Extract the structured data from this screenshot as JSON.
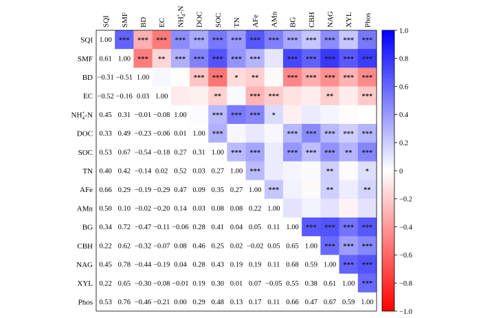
{
  "chart_data": {
    "type": "heatmap",
    "title": "",
    "xlabel": "",
    "ylabel": "",
    "variables": [
      "SQI",
      "SMF",
      "BD",
      "EC",
      "NH4+-N",
      "DOC",
      "SOC",
      "TN",
      "AFe",
      "AMn",
      "BG",
      "CBH",
      "NAG",
      "XYL",
      "Phos"
    ],
    "labels": {
      "plain": [
        "SQI",
        "SMF",
        "BD",
        "EC",
        null,
        "DOC",
        "SOC",
        "TN",
        "AFe",
        "AMn",
        "BG",
        "CBH",
        "NAG",
        "XYL",
        "Phos"
      ],
      "nh4": {
        "base": "NH",
        "sub": "4",
        "sup": "+",
        "suffix": "-N"
      }
    },
    "lower_triangle_values": [
      [
        1.0
      ],
      [
        0.61,
        1.0
      ],
      [
        -0.31,
        -0.51,
        1.0
      ],
      [
        -0.52,
        -0.16,
        0.03,
        1.0
      ],
      [
        0.45,
        0.31,
        -0.01,
        -0.08,
        1.0
      ],
      [
        0.33,
        0.49,
        -0.23,
        -0.06,
        0.01,
        1.0
      ],
      [
        0.53,
        0.67,
        -0.54,
        -0.18,
        0.27,
        0.31,
        1.0
      ],
      [
        0.4,
        0.42,
        -0.14,
        0.02,
        0.52,
        0.03,
        0.27,
        1.0
      ],
      [
        0.66,
        0.29,
        -0.19,
        -0.29,
        0.47,
        0.09,
        0.35,
        0.27,
        1.0
      ],
      [
        0.5,
        0.1,
        -0.02,
        -0.2,
        0.14,
        0.03,
        0.08,
        0.08,
        0.22,
        1.0
      ],
      [
        0.34,
        0.72,
        -0.47,
        -0.11,
        -0.06,
        0.28,
        0.41,
        0.04,
        0.05,
        0.11,
        1.0
      ],
      [
        0.22,
        0.62,
        -0.32,
        -0.07,
        0.08,
        0.46,
        0.25,
        0.02,
        -0.02,
        0.05,
        0.65,
        1.0
      ],
      [
        0.45,
        0.78,
        -0.44,
        -0.19,
        0.04,
        0.28,
        0.43,
        0.19,
        0.19,
        0.11,
        0.68,
        0.59,
        1.0
      ],
      [
        0.22,
        0.65,
        -0.3,
        -0.08,
        -0.01,
        0.19,
        0.3,
        0.01,
        0.07,
        -0.05,
        0.55,
        0.38,
        0.61,
        1.0
      ],
      [
        0.53,
        0.76,
        -0.46,
        -0.21,
        0.0,
        0.29,
        0.48,
        0.13,
        0.17,
        0.11,
        0.66,
        0.47,
        0.67,
        0.59,
        1.0
      ]
    ],
    "upper_significance": [
      [
        "",
        "***",
        "***",
        "***",
        "***",
        "***",
        "***",
        "***",
        "***",
        "***",
        "***",
        "***",
        "***",
        "***",
        "***"
      ],
      [
        "",
        "",
        "***",
        "**",
        "***",
        "***",
        "***",
        "***",
        "***",
        "",
        "***",
        "***",
        "***",
        "***",
        "***"
      ],
      [
        "",
        "",
        "",
        "",
        "",
        "***",
        "***",
        "*",
        "**",
        "",
        "***",
        "***",
        "***",
        "***",
        "***"
      ],
      [
        "",
        "",
        "",
        "",
        "",
        "",
        "**",
        "",
        "***",
        "***",
        "",
        "",
        "**",
        "",
        "***"
      ],
      [
        "",
        "",
        "",
        "",
        "",
        "",
        "***",
        "***",
        "***",
        "*",
        "",
        "",
        "",
        "",
        ""
      ],
      [
        "",
        "",
        "",
        "",
        "",
        "",
        "***",
        "",
        "",
        "",
        "***",
        "***",
        "***",
        "***",
        "***"
      ],
      [
        "",
        "",
        "",
        "",
        "",
        "",
        "",
        "***",
        "***",
        "",
        "***",
        "***",
        "***",
        "**",
        "***"
      ],
      [
        "",
        "",
        "",
        "",
        "",
        "",
        "",
        "",
        "***",
        "",
        "",
        "",
        "**",
        "",
        "*"
      ],
      [
        "",
        "",
        "",
        "",
        "",
        "",
        "",
        "",
        "",
        "***",
        "",
        "",
        "**",
        "",
        "**"
      ],
      [
        "",
        "",
        "",
        "",
        "",
        "",
        "",
        "",
        "",
        "",
        "",
        "",
        "",
        "",
        ""
      ],
      [
        "",
        "",
        "",
        "",
        "",
        "",
        "",
        "",
        "",
        "",
        "",
        "***",
        "***",
        "***",
        "***"
      ],
      [
        "",
        "",
        "",
        "",
        "",
        "",
        "",
        "",
        "",
        "",
        "",
        "",
        "***",
        "***",
        "***"
      ],
      [
        "",
        "",
        "",
        "",
        "",
        "",
        "",
        "",
        "",
        "",
        "",
        "",
        "",
        "***",
        "***"
      ],
      [
        "",
        "",
        "",
        "",
        "",
        "",
        "",
        "",
        "",
        "",
        "",
        "",
        "",
        "",
        "***"
      ],
      [
        "",
        "",
        "",
        "",
        "",
        "",
        "",
        "",
        "",
        "",
        "",
        "",
        "",
        "",
        ""
      ]
    ],
    "colorbar": {
      "range": [
        -1.0,
        1.0
      ],
      "ticks": [
        "1.0",
        "0.8",
        "0.6",
        "0.4",
        "0.2",
        "0",
        "−0.2",
        "−0.4",
        "−0.6",
        "−0.8",
        "−1.0"
      ],
      "low_color": "#ff0000",
      "mid_color": "#ffffff",
      "high_color": "#0000ff"
    },
    "grid": false,
    "legend": "colorbar-right"
  }
}
